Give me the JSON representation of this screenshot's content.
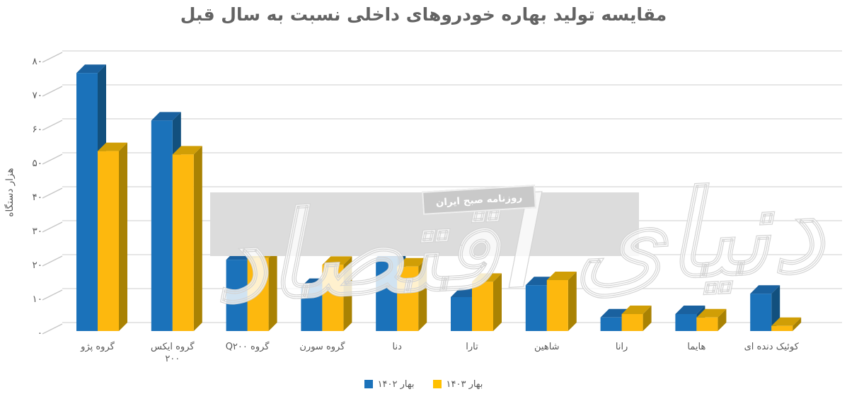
{
  "title": "مقایسه تولید بهاره خودروهای داخلی نسبت به سال قبل",
  "y_axis": {
    "title": "هزار دستگاه",
    "tick_labels": [
      "۰",
      "۱۰",
      "۲۰",
      "۳۰",
      "۴۰",
      "۵۰",
      "۶۰",
      "۷۰",
      "۸۰"
    ],
    "min": 0,
    "max": 80,
    "step": 10
  },
  "x_labels": [
    "گروه پژو",
    "گروه ایکس\n۲۰۰",
    "گروه Q۲۰۰",
    "گروه سورن",
    "دنا",
    "تارا",
    "شاهین",
    "رانا",
    "هایما",
    "کوئیک دنده ای"
  ],
  "legend": {
    "items": [
      {
        "label": "بهار ۱۴۰۲",
        "color": "#1B72BA"
      },
      {
        "label": "بهار ۱۴۰۳",
        "color": "#FFC000"
      }
    ]
  },
  "watermark": {
    "logo_text": "دنیای اقتصاد",
    "stamp_text": "روزنامه صبح ایران"
  },
  "colors": {
    "gridline": "#d8d8d8",
    "tick_dash": "#c6c6c6",
    "watermark_band": "#dcdcdc",
    "title_text": "#636363",
    "axis_text": "#595959"
  },
  "chart_data": {
    "type": "bar",
    "style": "3d-clustered-column",
    "title": "مقایسه تولید بهاره خودروهای داخلی نسبت به سال قبل",
    "ylabel": "هزار دستگاه",
    "ylim": [
      0,
      80
    ],
    "y_unit": "هزار دستگاه",
    "grid": true,
    "legend_position": "bottom",
    "categories": [
      "گروه پژو",
      "گروه ایکس ۲۰۰",
      "گروه Q۲۰۰",
      "گروه سورن",
      "دنا",
      "تارا",
      "شاهین",
      "رانا",
      "هایما",
      "کوئیک دنده ای"
    ],
    "series": [
      {
        "name": "بهار ۱۴۰۲",
        "colors": {
          "front": "#1B72BA",
          "side": "#12507E",
          "top": "#1A619F"
        },
        "values": [
          76,
          62,
          21,
          13,
          21.5,
          10,
          13.5,
          4,
          5,
          11
        ]
      },
      {
        "name": "بهار ۱۴۰۳",
        "colors": {
          "front": "#FDB80E",
          "side": "#A98203",
          "top": "#D09E06"
        },
        "values": [
          53,
          52,
          21.5,
          19.5,
          19,
          14.5,
          15,
          5,
          4,
          1.5
        ]
      }
    ]
  }
}
